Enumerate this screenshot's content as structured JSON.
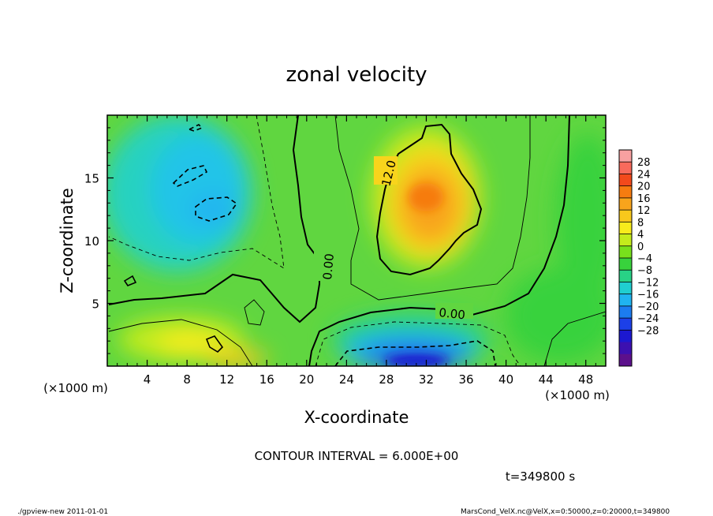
{
  "chart_data": {
    "type": "heatmap",
    "title": "zonal velocity",
    "xlabel": "X-coordinate",
    "ylabel": "Z-coordinate",
    "x_unit_label": "(×1000 m)",
    "y_unit_label": "(×1000 m)",
    "x_ticks": [
      4,
      8,
      12,
      16,
      20,
      24,
      28,
      32,
      36,
      40,
      44,
      48
    ],
    "y_ticks": [
      5,
      10,
      15
    ],
    "xlim": [
      0,
      50
    ],
    "ylim": [
      0,
      20
    ],
    "colorbar_ticks": [
      28,
      24,
      20,
      16,
      12,
      8,
      4,
      0,
      -4,
      -8,
      -12,
      -16,
      -20,
      -24,
      -28
    ],
    "colorbar_colors": [
      "#f8a0a0",
      "#f86a5c",
      "#f24a1c",
      "#f67c10",
      "#f8a41c",
      "#f8c81c",
      "#f8ec1c",
      "#c4ec1c",
      "#78e01c",
      "#38d23c",
      "#28d286",
      "#20ced0",
      "#20b4f0",
      "#1c7cf0",
      "#1c40e8",
      "#1c18d0",
      "#3c10b0",
      "#5c108c"
    ],
    "contour_interval_text": "CONTOUR INTERVAL = 6.000E+00",
    "time_text": "t=349800 s",
    "contour_labels": [
      "12.0",
      "0.00",
      "0.00"
    ],
    "features": [
      {
        "type": "max",
        "x": 32,
        "z": 13,
        "value": 16
      },
      {
        "type": "min",
        "x": 32,
        "z": 1.5,
        "value": -20
      },
      {
        "type": "min",
        "x": 10,
        "z": 12.5,
        "value": -8
      }
    ]
  },
  "footer": {
    "left": "./gpview-new  2011-01-01",
    "right": "MarsCond_VelX.nc@VelX,x=0:50000,z=0:20000,t=349800"
  }
}
